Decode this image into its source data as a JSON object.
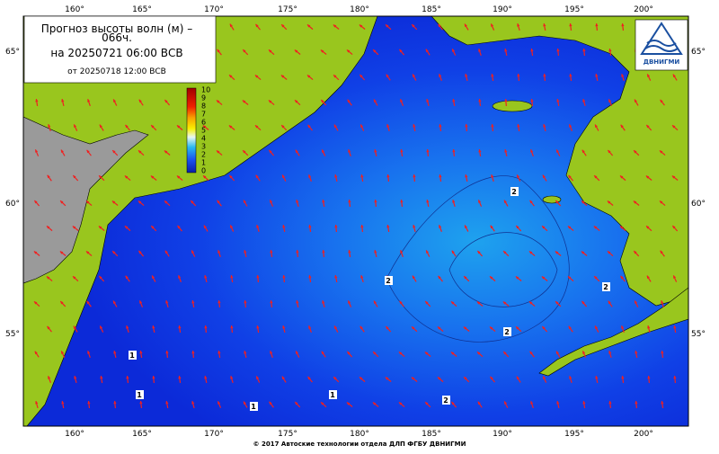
{
  "header": {
    "title_line1": "Прогноз высоты волн (м) –",
    "title_line2": "066ч.",
    "valid_time": "на 20250721 06:00 ВСВ",
    "issue_time": "от 20250718 12:00 ВСВ"
  },
  "colorbar": {
    "ticks": [
      10,
      9,
      8,
      7,
      6,
      5,
      4,
      3,
      2,
      1,
      0
    ]
  },
  "longitudes": [
    "160°",
    "165°",
    "170°",
    "175°",
    "180°",
    "185°",
    "190°",
    "195°",
    "200°"
  ],
  "latitudes": [
    "65°",
    "60°",
    "55°"
  ],
  "contour_labels": [
    "2",
    "2",
    "2",
    "2",
    "1",
    "1",
    "1",
    "2",
    "1"
  ],
  "logo": {
    "text": "ДВНИГМИ"
  },
  "footer": "© 2017 Автоские технологии отдела ДЛП ФГБУ ДВНИГМИ"
}
